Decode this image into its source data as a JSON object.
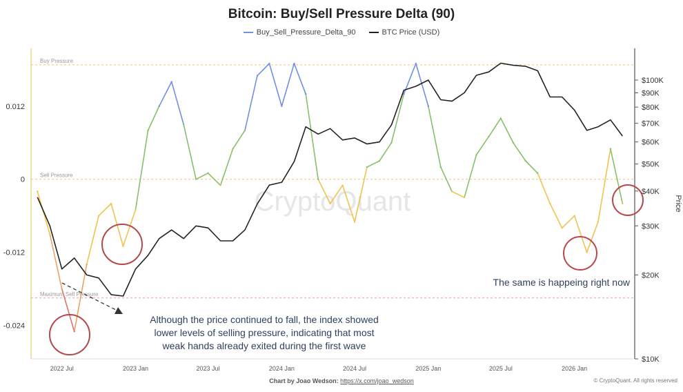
{
  "header": {
    "title": "Bitcoin: Buy/Sell Pressure Delta (90)"
  },
  "chart_data": {
    "type": "line",
    "title": "Bitcoin: Buy/Sell Pressure Delta (90)",
    "xlabel": "",
    "ylabel": "",
    "y2label": "Price",
    "x_tick_labels": [
      "2022 Jul",
      "2023 Jan",
      "2023 Jul",
      "2024 Jan",
      "2024 Jul",
      "2025 Jan",
      "2025 Jul",
      "2026 Jan"
    ],
    "y_left": {
      "ticks": [
        0.012,
        0,
        -0.012,
        -0.024
      ],
      "tick_labels": [
        "0.012",
        "0",
        "-0.012",
        "-0.024"
      ],
      "range": [
        -0.0295,
        0.0215
      ]
    },
    "y_right": {
      "scale": "log",
      "ticks": [
        10000,
        20000,
        30000,
        40000,
        50000,
        60000,
        70000,
        80000,
        90000,
        100000
      ],
      "tick_labels": [
        "$10K",
        "$20K",
        "$30K",
        "$40K",
        "$50K",
        "$60K",
        "$70K",
        "$80K",
        "$90K",
        "$100K"
      ],
      "range": [
        10000,
        130000
      ]
    },
    "reference_lines": [
      {
        "label": "Buy Pressure",
        "value": 0.0188,
        "color": "#f0c76a"
      },
      {
        "label": "Sell Pressure",
        "value": 0.0,
        "color": "#f0c76a"
      },
      {
        "label": "Maximum Sell Pressure",
        "value": -0.0195,
        "color": "#e8a0a0"
      }
    ],
    "series": [
      {
        "name": "Buy_Sell_Pressure_Delta_90",
        "color": "#6f8fe0",
        "x": [
          "2022-05",
          "2022-06",
          "2022-07",
          "2022-08",
          "2022-09",
          "2022-10",
          "2022-11",
          "2022-12",
          "2023-01",
          "2023-02",
          "2023-03",
          "2023-04",
          "2023-05",
          "2023-06",
          "2023-07",
          "2023-08",
          "2023-09",
          "2023-10",
          "2023-11",
          "2023-12",
          "2024-01",
          "2024-02",
          "2024-03",
          "2024-04",
          "2024-05",
          "2024-06",
          "2024-07",
          "2024-08",
          "2024-09",
          "2024-10",
          "2024-11",
          "2024-12",
          "2025-01",
          "2025-02",
          "2025-03",
          "2025-04",
          "2025-05",
          "2025-06",
          "2025-07",
          "2025-08",
          "2025-09",
          "2025-10",
          "2025-11",
          "2025-12",
          "2026-01",
          "2026-02",
          "2026-03",
          "2026-04",
          "2026-05"
        ],
        "values": [
          -0.002,
          -0.009,
          -0.018,
          -0.025,
          -0.014,
          -0.006,
          -0.004,
          -0.011,
          -0.005,
          0.008,
          0.012,
          0.016,
          0.009,
          0.0,
          0.001,
          -0.001,
          0.005,
          0.008,
          0.017,
          0.019,
          0.012,
          0.019,
          0.014,
          0.0,
          -0.004,
          -0.001,
          -0.007,
          0.002,
          0.003,
          0.006,
          0.014,
          0.019,
          0.012,
          0.002,
          -0.002,
          -0.003,
          0.004,
          0.007,
          0.01,
          0.006,
          0.003,
          0.001,
          -0.004,
          -0.008,
          -0.006,
          -0.012,
          -0.007,
          0.005,
          -0.004
        ]
      },
      {
        "name": "BTC Price (USD)",
        "color": "#222222",
        "x": [
          "2022-05",
          "2022-06",
          "2022-07",
          "2022-08",
          "2022-09",
          "2022-10",
          "2022-11",
          "2022-12",
          "2023-01",
          "2023-02",
          "2023-03",
          "2023-04",
          "2023-05",
          "2023-06",
          "2023-07",
          "2023-08",
          "2023-09",
          "2023-10",
          "2023-11",
          "2023-12",
          "2024-01",
          "2024-02",
          "2024-03",
          "2024-04",
          "2024-05",
          "2024-06",
          "2024-07",
          "2024-08",
          "2024-09",
          "2024-10",
          "2024-11",
          "2024-12",
          "2025-01",
          "2025-02",
          "2025-03",
          "2025-04",
          "2025-05",
          "2025-06",
          "2025-07",
          "2025-08",
          "2025-09",
          "2025-10",
          "2025-11",
          "2025-12",
          "2026-01",
          "2026-02",
          "2026-03",
          "2026-04",
          "2026-05"
        ],
        "values": [
          38000,
          30000,
          21000,
          23000,
          20000,
          19500,
          17000,
          16800,
          21000,
          23500,
          27000,
          29000,
          27000,
          30000,
          29500,
          26500,
          26500,
          29000,
          36000,
          42000,
          43000,
          51000,
          68000,
          64000,
          67000,
          61000,
          62000,
          59000,
          60000,
          69000,
          92000,
          95000,
          100000,
          85000,
          84000,
          90000,
          104000,
          107000,
          115000,
          113000,
          112000,
          108000,
          87000,
          87000,
          78000,
          66000,
          68000,
          72000,
          63000
        ]
      }
    ]
  },
  "annotations": {
    "note_left": "Although the price continued to fall, the index showed lower levels of selling pressure, indicating that most weak hands already exited during the first wave",
    "note_right": "The same is happeing right now",
    "watermark": "CryptoQuant"
  },
  "footer": {
    "credit_prefix": "Chart by Joao Wedson:",
    "credit_link": "https://x.com/joao_wedson",
    "copyright": "© CryptoQuant. All rights reserved"
  }
}
